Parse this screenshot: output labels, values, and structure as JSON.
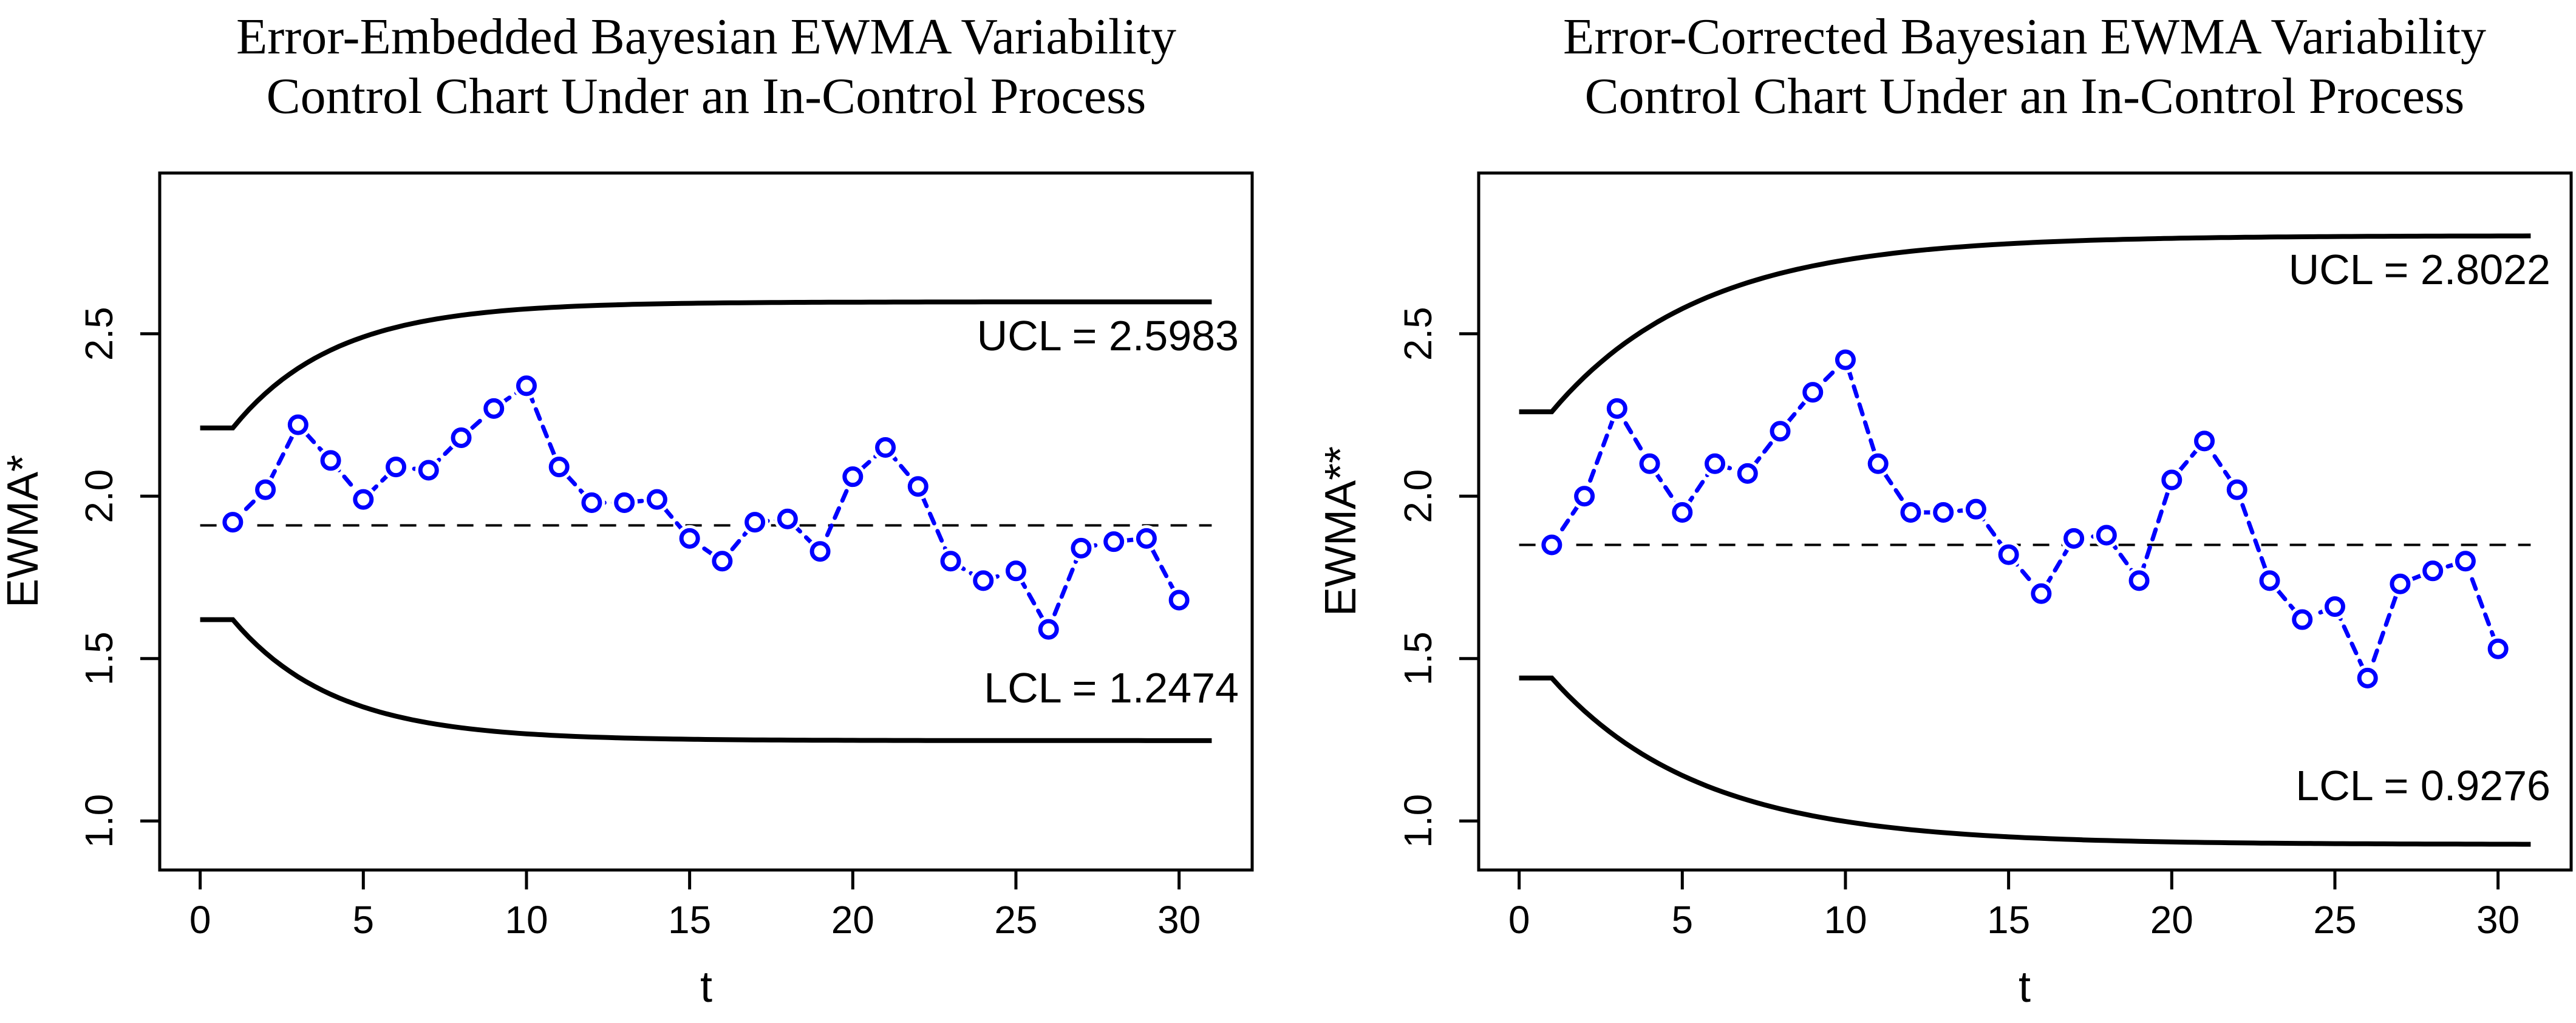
{
  "page": {
    "background": "#ffffff",
    "text_color": "#000000"
  },
  "chart_data": [
    {
      "type": "line",
      "title": "Error-Embedded Bayesian EWMA Variability Control Chart Under an In-Control Process",
      "title_line1": "Error-Embedded Bayesian EWMA Variability",
      "title_line2": "Control Chart Under an In-Control Process",
      "xlabel": "t",
      "ylabel": "EWMA*",
      "x_ticks": [
        0,
        5,
        10,
        15,
        20,
        25,
        30
      ],
      "y_ticks": [
        1.0,
        1.5,
        2.0,
        2.5
      ],
      "y_tick_labels": [
        "1.0",
        "1.5",
        "2.0",
        "2.5"
      ],
      "xlim": [
        -1.24,
        32.24
      ],
      "ylim": [
        0.849,
        2.995
      ],
      "grid": "off",
      "x": [
        1,
        2,
        3,
        4,
        5,
        6,
        7,
        8,
        9,
        10,
        11,
        12,
        13,
        14,
        15,
        16,
        17,
        18,
        19,
        20,
        21,
        22,
        23,
        24,
        25,
        26,
        27,
        28,
        29,
        30
      ],
      "values": [
        1.92,
        2.02,
        2.22,
        2.11,
        1.99,
        2.09,
        2.08,
        2.18,
        2.27,
        2.34,
        2.09,
        1.98,
        1.98,
        1.99,
        1.87,
        1.8,
        1.92,
        1.93,
        1.83,
        2.06,
        2.15,
        2.03,
        1.8,
        1.74,
        1.77,
        1.59,
        1.84,
        1.86,
        1.87,
        1.68
      ],
      "center_line": 1.91,
      "ucl": 2.5983,
      "lcl": 1.2474,
      "ucl_label": "UCL = 2.5983",
      "lcl_label": "LCL = 1.2474",
      "ucl_start": 2.21,
      "lcl_start": 1.62,
      "limit_rate": 0.32,
      "series_color": "#0000FF",
      "line_color": "#000000"
    },
    {
      "type": "line",
      "title": "Error-Corrected Bayesian EWMA Variability Control Chart Under an In-Control Process",
      "title_line1": "Error-Corrected Bayesian EWMA Variability",
      "title_line2": "Control Chart Under an In-Control Process",
      "xlabel": "t",
      "ylabel": "EWMA**",
      "x_ticks": [
        0,
        5,
        10,
        15,
        20,
        25,
        30
      ],
      "y_ticks": [
        1.0,
        1.5,
        2.0,
        2.5
      ],
      "y_tick_labels": [
        "1.0",
        "1.5",
        "2.0",
        "2.5"
      ],
      "xlim": [
        -1.24,
        32.24
      ],
      "ylim": [
        0.849,
        2.995
      ],
      "grid": "off",
      "x": [
        1,
        2,
        3,
        4,
        5,
        6,
        7,
        8,
        9,
        10,
        11,
        12,
        13,
        14,
        15,
        16,
        17,
        18,
        19,
        20,
        21,
        22,
        23,
        24,
        25,
        26,
        27,
        28,
        29,
        30
      ],
      "values": [
        1.85,
        2.0,
        2.27,
        2.1,
        1.95,
        2.1,
        2.07,
        2.2,
        2.32,
        2.42,
        2.1,
        1.95,
        1.95,
        1.96,
        1.82,
        1.7,
        1.87,
        1.88,
        1.74,
        2.05,
        2.17,
        2.02,
        1.74,
        1.62,
        1.66,
        1.44,
        1.73,
        1.77,
        1.8,
        1.53
      ],
      "center_line": 1.85,
      "ucl": 2.8022,
      "lcl": 0.9276,
      "ucl_label": "UCL = 2.8022",
      "lcl_label": "LCL = 0.9276",
      "ucl_start": 2.26,
      "lcl_start": 1.44,
      "limit_rate": 0.22,
      "series_color": "#0000FF",
      "line_color": "#000000"
    }
  ]
}
